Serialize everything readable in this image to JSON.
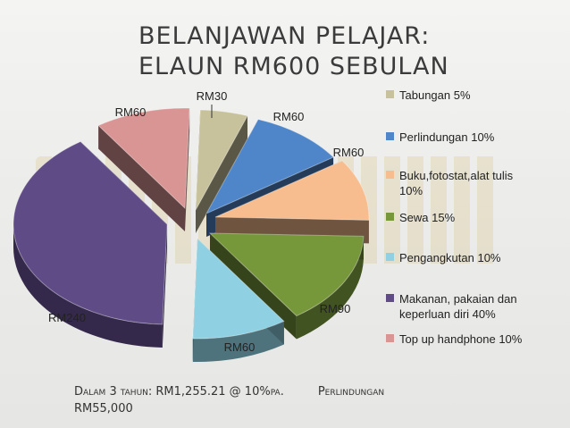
{
  "title": {
    "line1": "BELANJAWAN PELAJAR:",
    "line2": "ELAUN RM600 SEBULAN"
  },
  "footer": {
    "line1": "Dalam 3 tahun: RM1,255.21 @ 10%pa.",
    "line1b": "Perlindungan",
    "line2": "RM55,000"
  },
  "chart_data": {
    "type": "pie",
    "title": "",
    "slices": [
      {
        "name": "Tabungan",
        "legend": "Tabungan   5%",
        "percent": 5,
        "label": "RM30",
        "color": "#c8c29c"
      },
      {
        "name": "Perlindungan",
        "legend": "Perlindungan   10%",
        "percent": 10,
        "label": "RM60",
        "color": "#4f86c9"
      },
      {
        "name": "Buku,fotostat,alat tulis",
        "legend": "Buku,fotostat,alat tulis\n10%",
        "percent": 10,
        "label": "RM60",
        "color": "#f7bd8e"
      },
      {
        "name": "Sewa",
        "legend": "Sewa   15%",
        "percent": 15,
        "label": "RM90",
        "color": "#76973a"
      },
      {
        "name": "Pengangkutan",
        "legend": "Pengangkutan     10%",
        "percent": 10,
        "label": "RM60",
        "color": "#8fd1e2"
      },
      {
        "name": "Makanan, pakaian dan keperluan diri",
        "legend": "Makanan, pakaian dan\nkeperluan diri   40%",
        "percent": 40,
        "label": "RM240",
        "color": "#5f4b86"
      },
      {
        "name": "Top up handphone",
        "legend": "Top up handphone     10%",
        "percent": 10,
        "label": "RM60",
        "color": "#d99594"
      }
    ],
    "legend_position": "right",
    "exploded": true
  }
}
